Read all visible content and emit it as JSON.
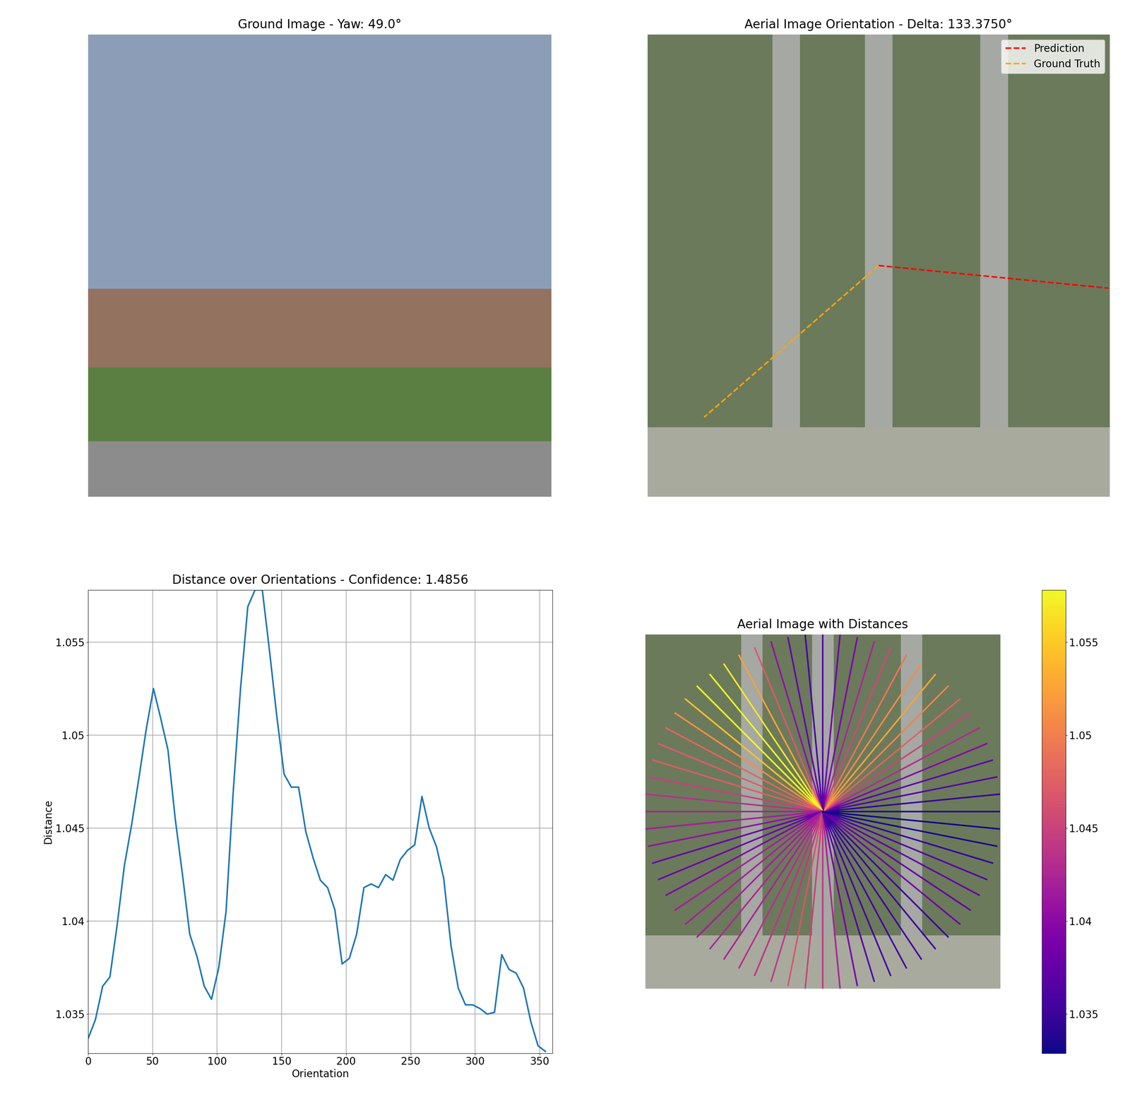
{
  "chart_data": [
    {
      "type": "image",
      "title": "Ground Image - Yaw: 49.0°"
    },
    {
      "type": "image",
      "title": "Aerial Image Orientation - Delta: 133.3750°",
      "legend": "upper right",
      "series": [
        {
          "name": "Prediction",
          "color": "red",
          "line_style": "dashed",
          "angle": 354.375
        },
        {
          "name": "Ground Truth",
          "color": "orange",
          "line_style": "dashed",
          "angle": 221.0
        }
      ]
    },
    {
      "type": "line",
      "title": "Distance over Orientations - Confidence: 1.4856",
      "x_label": "Orientation",
      "y_label": "Distance",
      "color": "#1f77b4",
      "grid": true,
      "x": [
        0.0,
        5.625,
        11.25,
        16.875,
        22.5,
        28.125,
        33.75,
        39.375,
        45.0,
        50.625,
        56.25,
        61.875,
        67.5,
        73.125,
        78.75,
        84.375,
        90.0,
        95.625,
        101.25,
        106.875,
        112.5,
        118.125,
        123.75,
        129.375,
        135.0,
        140.625,
        146.25,
        151.875,
        157.5,
        163.125,
        168.75,
        174.375,
        180.0,
        185.625,
        191.25,
        196.875,
        202.5,
        208.125,
        213.75,
        219.375,
        225.0,
        230.625,
        236.25,
        241.875,
        247.5,
        253.125,
        258.75,
        264.375,
        270.0,
        275.625,
        281.25,
        286.875,
        292.5,
        298.125,
        303.75,
        309.375,
        315.0,
        320.625,
        326.25,
        331.875,
        337.5,
        343.125,
        348.75,
        354.375
      ],
      "values": [
        1.0337,
        1.0347,
        1.0365,
        1.037,
        1.0398,
        1.043,
        1.0452,
        1.0477,
        1.0503,
        1.0525,
        1.0509,
        1.0492,
        1.0455,
        1.0425,
        1.0393,
        1.0381,
        1.0365,
        1.0358,
        1.0375,
        1.0405,
        1.047,
        1.0525,
        1.0569,
        1.0578,
        1.0578,
        1.0545,
        1.051,
        1.0479,
        1.0472,
        1.0472,
        1.0448,
        1.0434,
        1.0422,
        1.0418,
        1.0406,
        1.0377,
        1.038,
        1.0393,
        1.0418,
        1.042,
        1.0418,
        1.0425,
        1.0422,
        1.0433,
        1.0438,
        1.0441,
        1.0467,
        1.045,
        1.044,
        1.0423,
        1.0387,
        1.0364,
        1.0355,
        1.0355,
        1.0353,
        1.035,
        1.0351,
        1.0382,
        1.0374,
        1.0372,
        1.0364,
        1.0346,
        1.0333,
        1.033
      ],
      "xlim": [
        0,
        360
      ],
      "xticks": [
        0,
        50,
        100,
        150,
        200,
        250,
        300,
        350
      ],
      "ylim": [
        1.0329,
        1.0578
      ],
      "yticks": [
        1.035,
        1.04,
        1.045,
        1.05,
        1.055
      ]
    },
    {
      "type": "image",
      "title": "Aerial Image with Distances",
      "color": "plasma",
      "colorbar_range": [
        1.0329,
        1.0578
      ],
      "colorbar_ticks": [
        1.035,
        1.04,
        1.045,
        1.05,
        1.055
      ]
    }
  ]
}
